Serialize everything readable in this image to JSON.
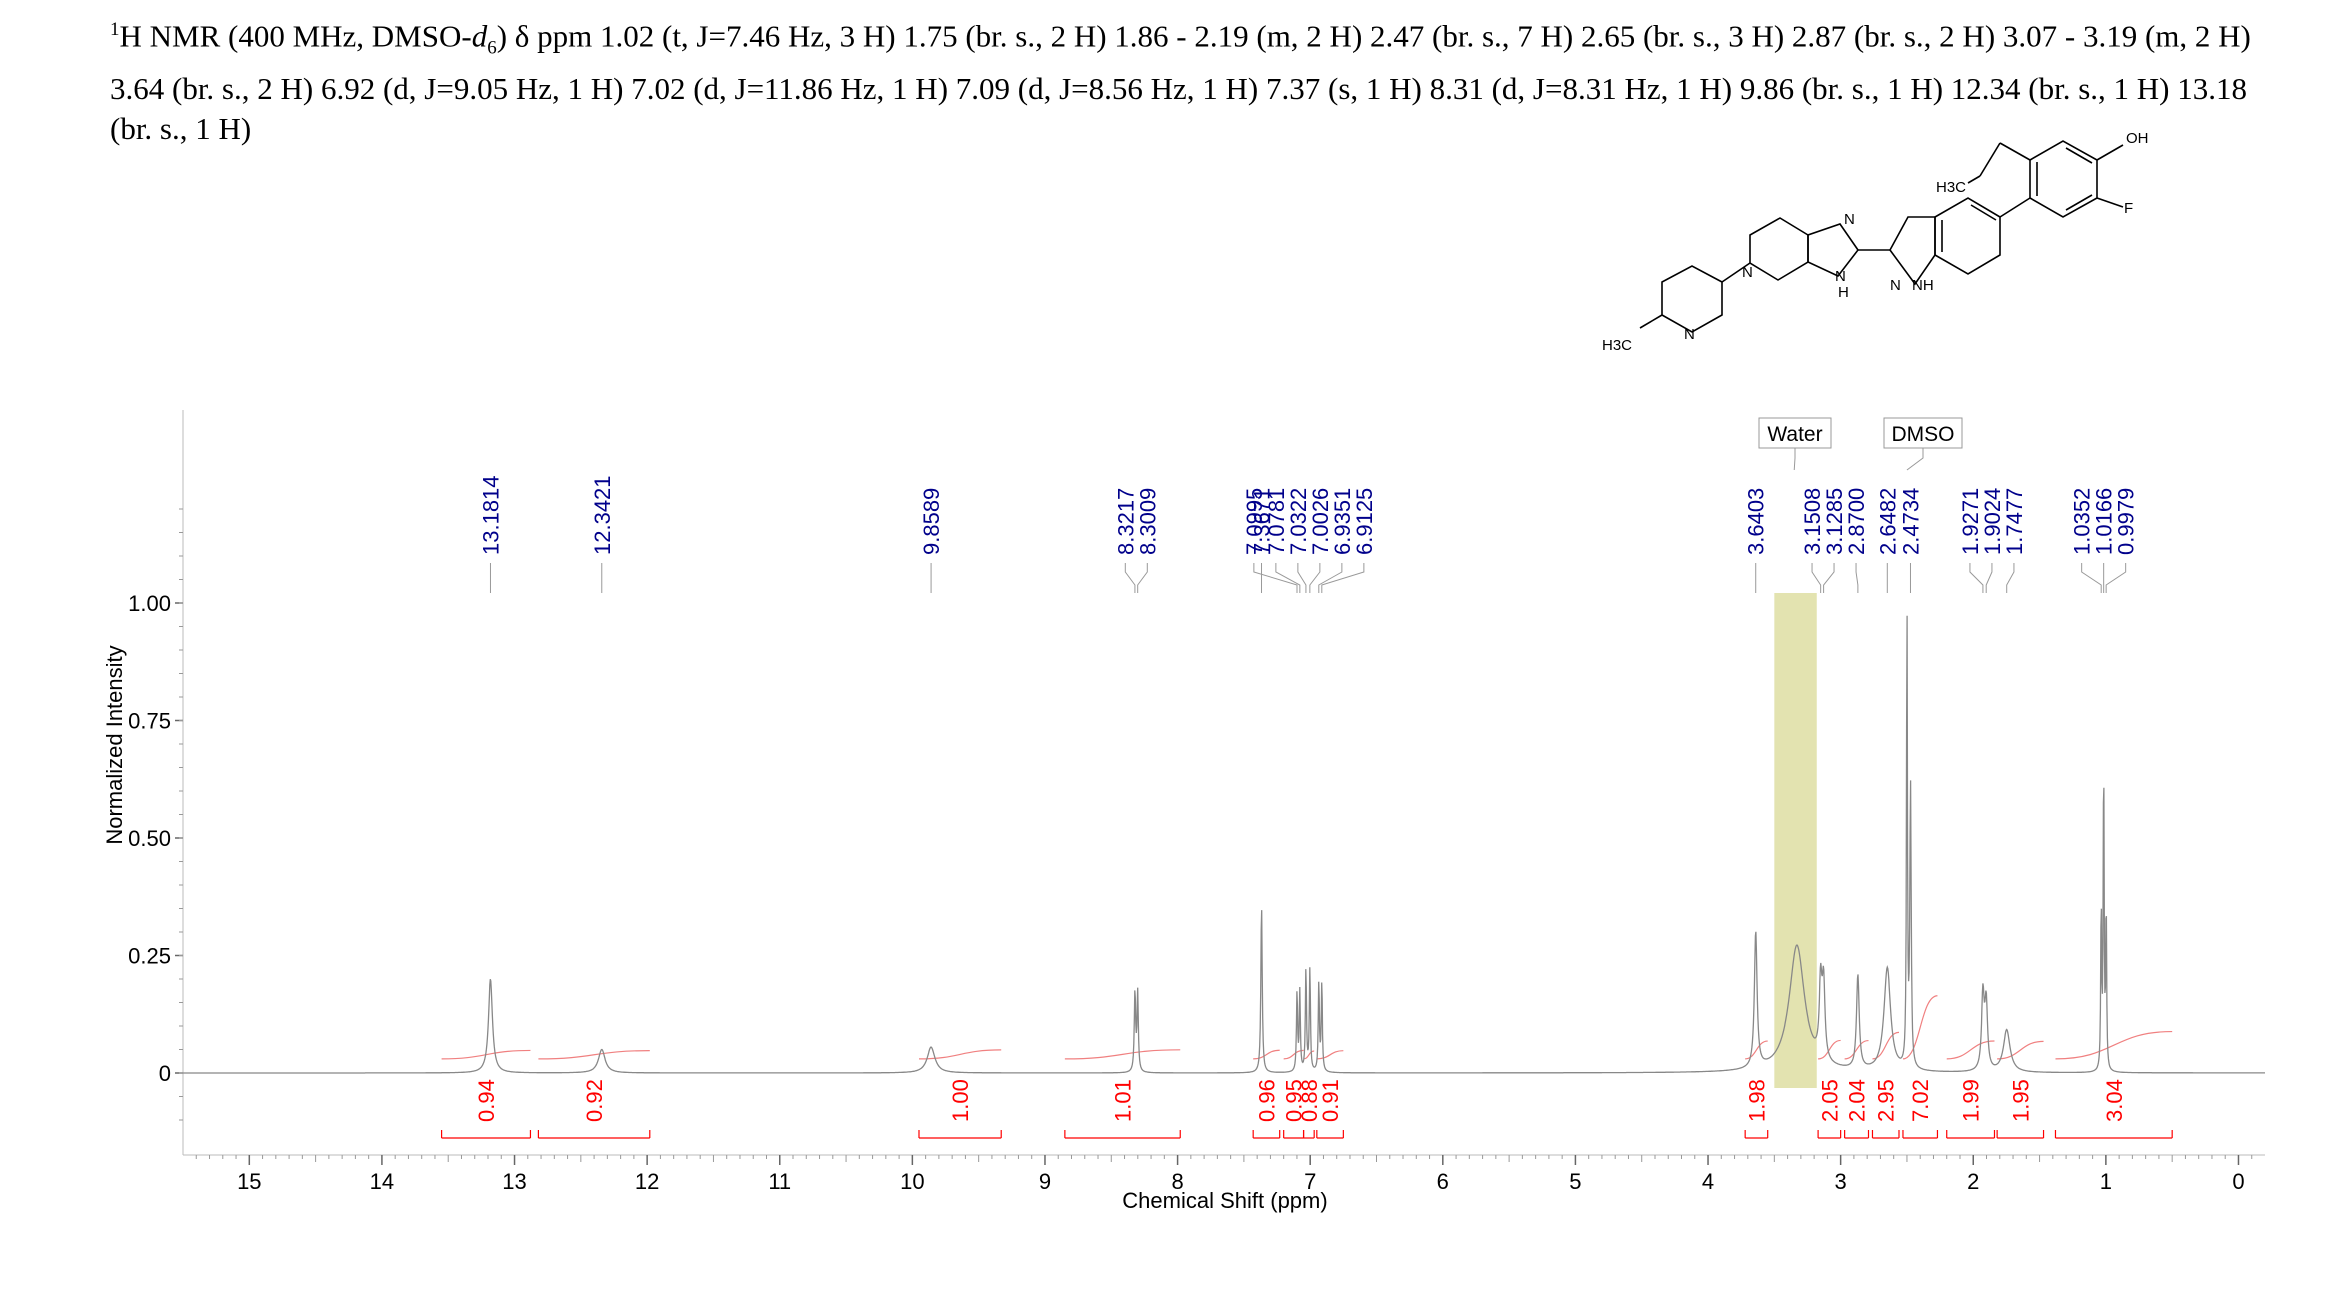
{
  "header": {
    "nucleus_sup": "1",
    "nucleus": "H NMR (400 MHz, DMSO-",
    "solvent_d": "d",
    "solvent_sub": "6",
    "text": ") δ ppm 1.02 (t, J=7.46 Hz, 3 H) 1.75 (br. s., 2 H) 1.86 - 2.19 (m, 2 H) 2.47 (br. s., 7 H) 2.65 (br. s., 3 H) 2.87 (br. s., 2 H) 3.07 - 3.19 (m, 2 H) 3.64 (br. s., 2 H) 6.92 (d, J=9.05 Hz, 1 H) 7.02 (d, J=11.86 Hz, 1 H) 7.09 (d, J=8.56 Hz, 1 H) 7.37 (s, 1 H) 8.31 (d, J=8.31 Hz, 1 H) 9.86 (br. s., 1 H) 12.34 (br. s., 1 H) 13.18 (br. s., 1 H)"
  },
  "structure_labels": {
    "oh": "OH",
    "f": "F",
    "h3c_top": "H3C",
    "n1": "N",
    "nh_imid": "H",
    "n_imid": "N",
    "n_pip": "N",
    "nh_indazole": "NH",
    "n_indazole": "N",
    "n_methylpip": "N",
    "h3c_bottom": "H3C"
  },
  "chart_data": {
    "type": "line",
    "xlabel": "Chemical Shift (ppm)",
    "ylabel": "Normalized Intensity",
    "xlim": [
      15.5,
      -0.2
    ],
    "ylim": [
      -0.15,
      1.3
    ],
    "x_ticks": [
      15,
      14,
      13,
      12,
      11,
      10,
      9,
      8,
      7,
      6,
      5,
      4,
      3,
      2,
      1,
      0
    ],
    "y_ticks": [
      1.0,
      0.75,
      0.5,
      0.25,
      0
    ],
    "y_tick_labels": [
      "1.00",
      "0.75",
      "0.50",
      "0.25",
      "0"
    ],
    "series": [
      {
        "peaks": [
          {
            "ppm": 13.1814,
            "height": 0.2,
            "width": 0.018
          },
          {
            "ppm": 12.3421,
            "height": 0.05,
            "width": 0.03
          },
          {
            "ppm": 9.8589,
            "height": 0.055,
            "width": 0.035
          },
          {
            "ppm": 8.3217,
            "height": 0.17,
            "width": 0.006
          },
          {
            "ppm": 8.3009,
            "height": 0.17,
            "width": 0.006
          },
          {
            "ppm": 7.3671,
            "height": 0.36,
            "width": 0.006
          },
          {
            "ppm": 7.0995,
            "height": 0.17,
            "width": 0.005
          },
          {
            "ppm": 7.0781,
            "height": 0.17,
            "width": 0.005
          },
          {
            "ppm": 7.0322,
            "height": 0.22,
            "width": 0.005
          },
          {
            "ppm": 7.0026,
            "height": 0.22,
            "width": 0.005
          },
          {
            "ppm": 6.9351,
            "height": 0.19,
            "width": 0.005
          },
          {
            "ppm": 6.9125,
            "height": 0.19,
            "width": 0.005
          },
          {
            "ppm": 3.6403,
            "height": 0.29,
            "width": 0.012
          },
          {
            "ppm": 3.33,
            "height": 0.27,
            "width": 0.07
          },
          {
            "ppm": 3.1508,
            "height": 0.16,
            "width": 0.012
          },
          {
            "ppm": 3.1285,
            "height": 0.16,
            "width": 0.012
          },
          {
            "ppm": 2.87,
            "height": 0.2,
            "width": 0.012
          },
          {
            "ppm": 2.6482,
            "height": 0.22,
            "width": 0.03
          },
          {
            "ppm": 2.4734,
            "height": 0.6,
            "width": 0.006
          },
          {
            "ppm": 2.5,
            "height": 1.0,
            "width": 0.004
          },
          {
            "ppm": 1.9271,
            "height": 0.16,
            "width": 0.012
          },
          {
            "ppm": 1.9024,
            "height": 0.14,
            "width": 0.012
          },
          {
            "ppm": 1.7477,
            "height": 0.09,
            "width": 0.03
          },
          {
            "ppm": 1.0352,
            "height": 0.36,
            "width": 0.004
          },
          {
            "ppm": 1.0166,
            "height": 0.68,
            "width": 0.004
          },
          {
            "ppm": 0.9979,
            "height": 0.36,
            "width": 0.004
          }
        ]
      }
    ],
    "peak_labels": [
      "13.1814",
      "12.3421",
      "9.8589",
      "8.3217",
      "8.3009",
      "7.3671",
      "7.0995",
      "7.0781",
      "7.0322",
      "7.0026",
      "6.9351",
      "6.9125",
      "3.6403",
      "3.1508",
      "3.1285",
      "2.8700",
      "2.6482",
      "2.4734",
      "1.9271",
      "1.9024",
      "1.7477",
      "1.0352",
      "1.0166",
      "0.9979"
    ],
    "integrals": [
      {
        "value": "0.94",
        "from": 13.55,
        "to": 12.88
      },
      {
        "value": "0.92",
        "from": 12.82,
        "to": 11.98
      },
      {
        "value": "1.00",
        "from": 9.95,
        "to": 9.33
      },
      {
        "value": "1.01",
        "from": 8.85,
        "to": 7.98
      },
      {
        "value": "0.96",
        "from": 7.43,
        "to": 7.23
      },
      {
        "value": "0.95",
        "from": 7.2,
        "to": 7.05
      },
      {
        "value": "0.88",
        "from": 7.05,
        "to": 6.97
      },
      {
        "value": "0.91",
        "from": 6.95,
        "to": 6.75
      },
      {
        "value": "1.98",
        "from": 3.72,
        "to": 3.55
      },
      {
        "value": "2.05",
        "from": 3.17,
        "to": 3.0
      },
      {
        "value": "2.04",
        "from": 2.97,
        "to": 2.79
      },
      {
        "value": "2.95",
        "from": 2.76,
        "to": 2.56
      },
      {
        "value": "7.02",
        "from": 2.53,
        "to": 2.27
      },
      {
        "value": "1.99",
        "from": 2.2,
        "to": 1.84
      },
      {
        "value": "1.95",
        "from": 1.82,
        "to": 1.47
      },
      {
        "value": "3.04",
        "from": 1.38,
        "to": 0.5
      }
    ],
    "annotations": [
      {
        "label": "Water",
        "ppm": 3.35,
        "shaded_from": 3.5,
        "shaded_to": 3.18,
        "color": "#e3e3b0"
      },
      {
        "label": "DMSO",
        "ppm": 2.5
      }
    ],
    "colors": {
      "spectrum": "#888888",
      "peak_label": "#00008b",
      "integral": "#ff0000",
      "integral_curve": "#f08080"
    }
  }
}
